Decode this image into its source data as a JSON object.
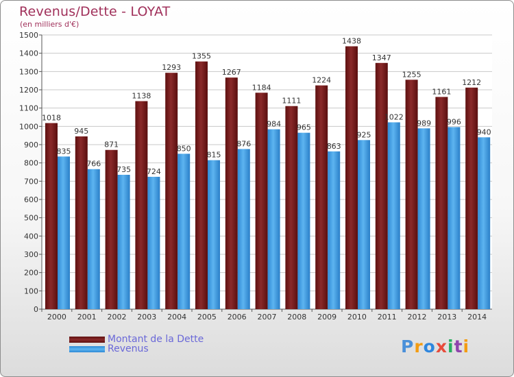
{
  "title": "Revenus/Dette - LOYAT",
  "subtitle": "(en milliers d'€)",
  "logo": {
    "text": "Proxiti",
    "letters": [
      {
        "ch": "P",
        "color": "#4a90d9"
      },
      {
        "ch": "r",
        "color": "#f39c12"
      },
      {
        "ch": "o",
        "color": "#2e86de"
      },
      {
        "ch": "x",
        "color": "#e74c3c"
      },
      {
        "ch": "i",
        "color": "#27ae60"
      },
      {
        "ch": "t",
        "color": "#8e44ad"
      },
      {
        "ch": "i",
        "color": "#f39c12"
      }
    ]
  },
  "chart_data": {
    "type": "bar",
    "title": "Revenus/Dette - LOYAT",
    "subtitle": "(en milliers d'€)",
    "categories": [
      "2000",
      "2001",
      "2002",
      "2003",
      "2004",
      "2005",
      "2006",
      "2007",
      "2008",
      "2009",
      "2010",
      "2011",
      "2012",
      "2013",
      "2014"
    ],
    "series": [
      {
        "name": "Montant de la Dette",
        "color": "#7a1c1c",
        "values": [
          1018,
          945,
          871,
          1138,
          1293,
          1355,
          1267,
          1184,
          1111,
          1224,
          1438,
          1347,
          1255,
          1161,
          1212
        ]
      },
      {
        "name": "Revenus",
        "color": "#4aa3e8",
        "values": [
          835,
          766,
          735,
          724,
          850,
          815,
          876,
          984,
          965,
          863,
          925,
          1022,
          989,
          996,
          940
        ]
      }
    ],
    "ylim": [
      0,
      1500
    ],
    "yticks": [
      0,
      100,
      200,
      300,
      400,
      500,
      600,
      700,
      800,
      900,
      1000,
      1100,
      1200,
      1300,
      1400,
      1500
    ],
    "grid": true,
    "legend_position": "bottom-left"
  }
}
